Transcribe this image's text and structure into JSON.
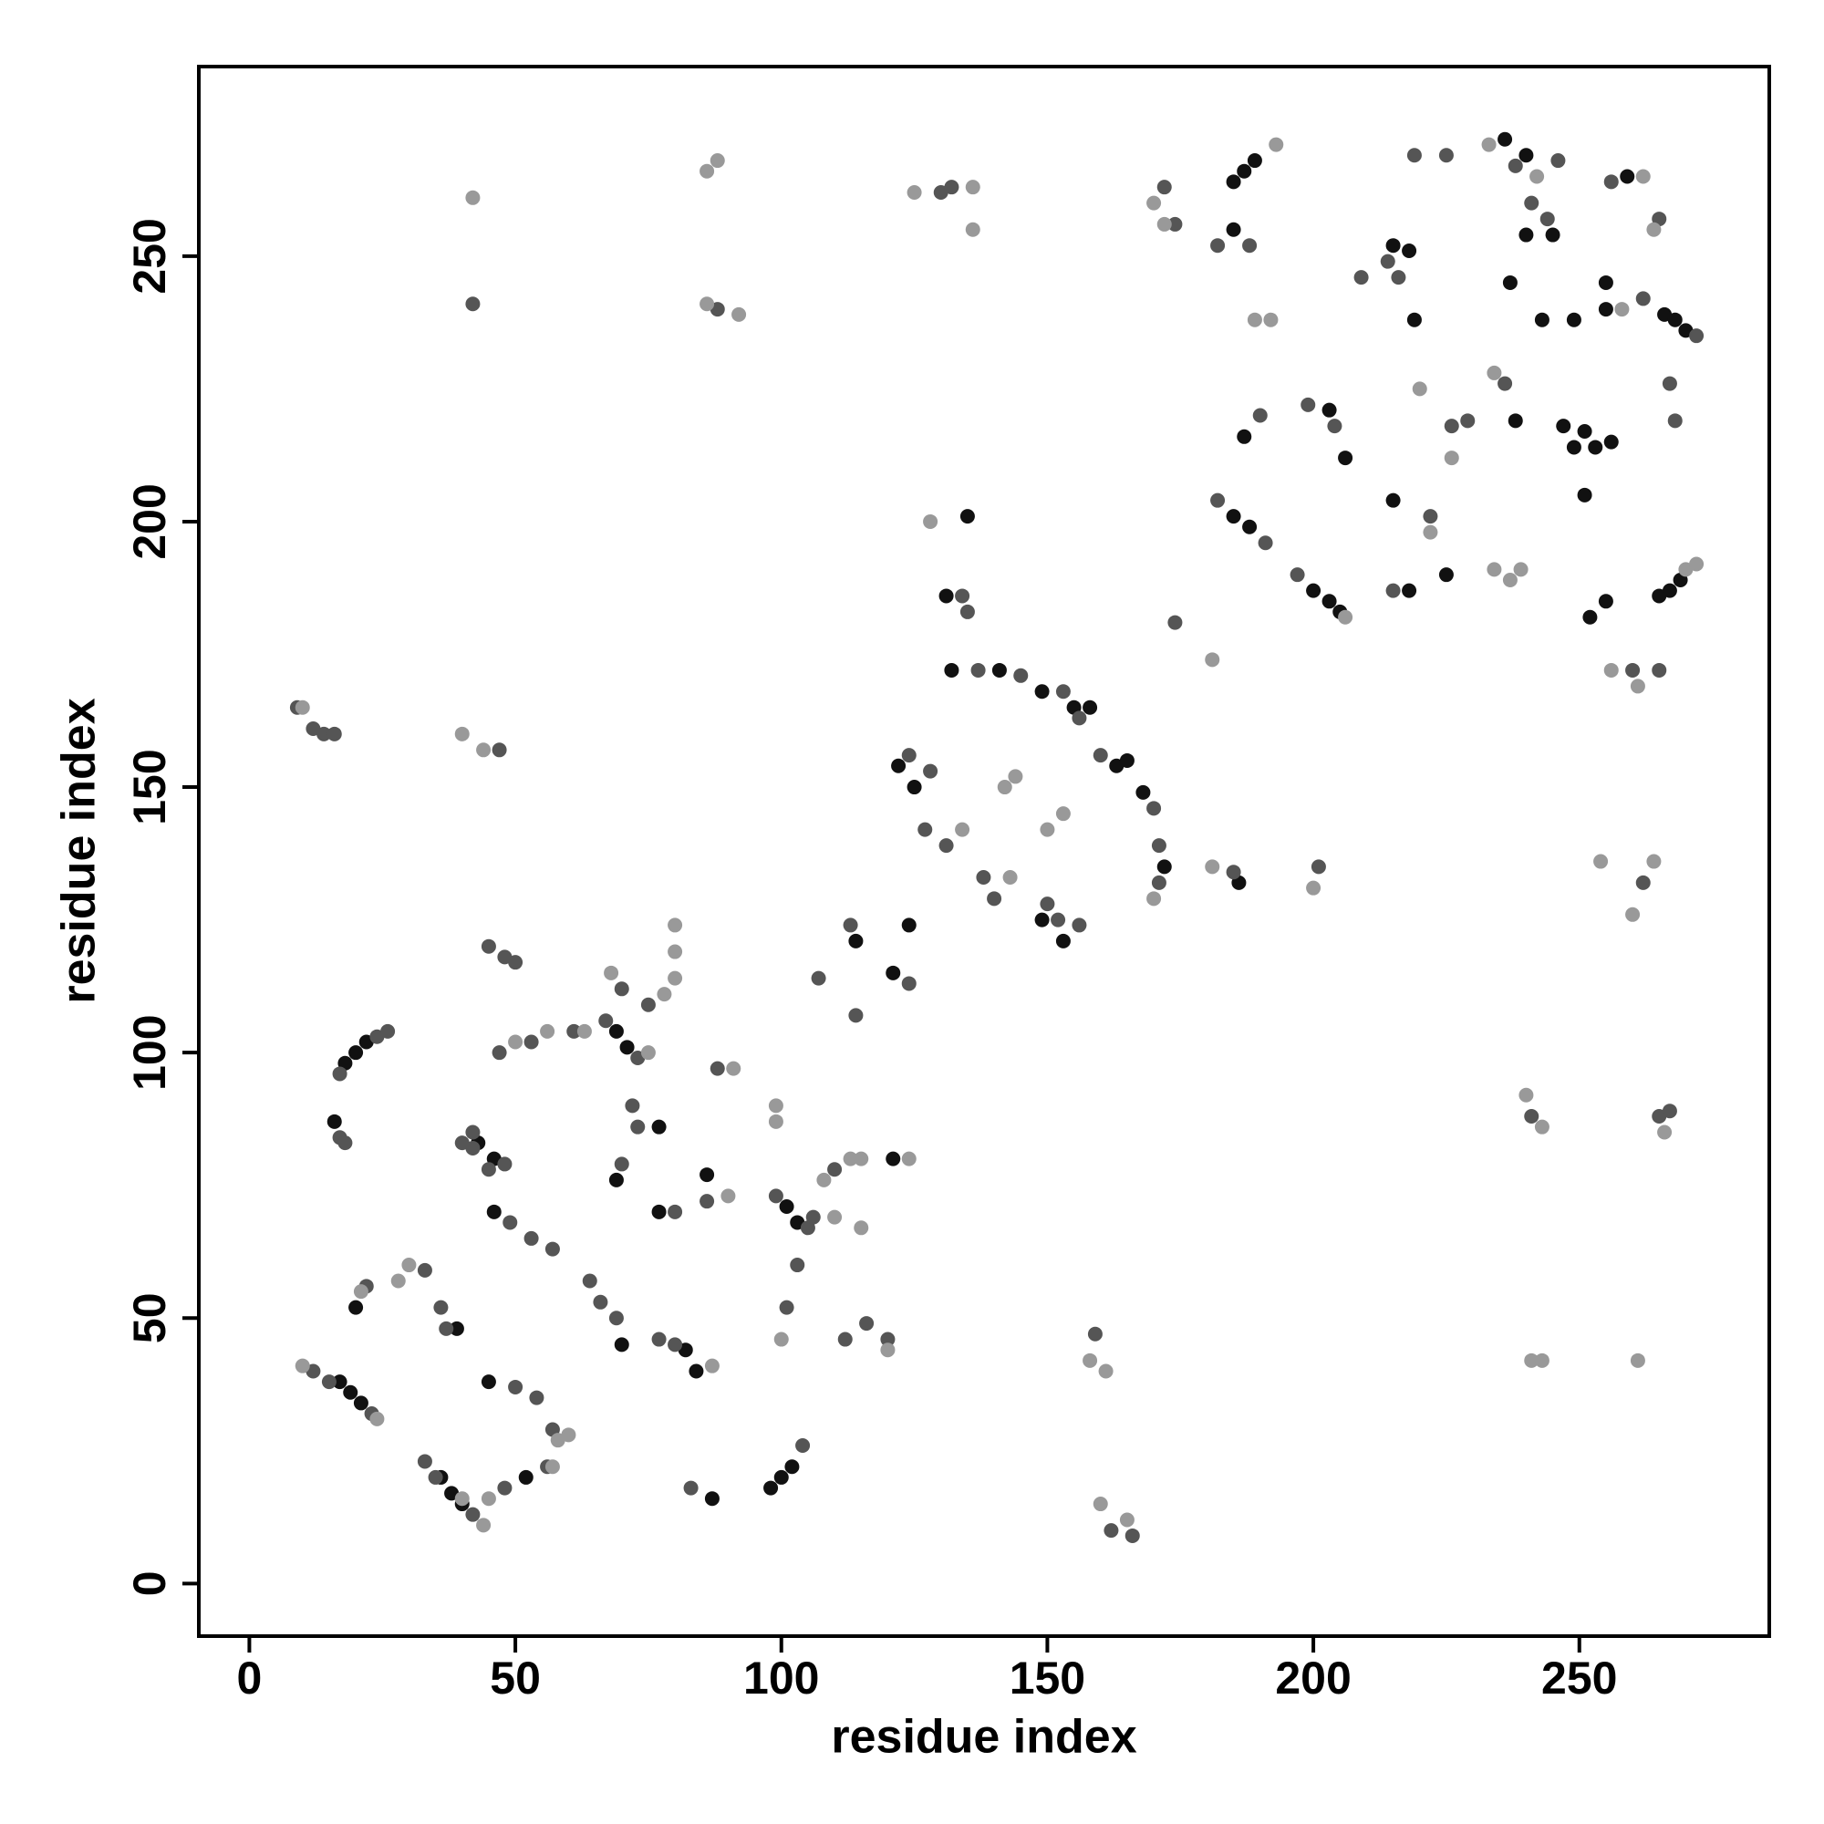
{
  "chart_data": {
    "type": "scatter",
    "x_label": "residue index",
    "y_label": "residue index",
    "xlim": [
      -9.5,
      285.7
    ],
    "ylim": [
      -9.9,
      285.7
    ],
    "xticks": [
      0,
      50,
      100,
      150,
      200,
      250
    ],
    "yticks": [
      0,
      50,
      100,
      150,
      200,
      250
    ],
    "grid": false,
    "series": [
      {
        "color": "#111111",
        "x": [
          17,
          19,
          21,
          36,
          38,
          40,
          20,
          39,
          45,
          52,
          16,
          18,
          20,
          22,
          43,
          46,
          46,
          69,
          71,
          77,
          70,
          69,
          86,
          77,
          84,
          98,
          100,
          102,
          87,
          101,
          103,
          114,
          121,
          122,
          125,
          131,
          135,
          132,
          141,
          149,
          155,
          158,
          163,
          165,
          168,
          149,
          153,
          186,
          185,
          187,
          189,
          185,
          187,
          185,
          188,
          200,
          203,
          205,
          203,
          206,
          215,
          218,
          219,
          215,
          218,
          225,
          236,
          240,
          240,
          245,
          237,
          238,
          247,
          249,
          251,
          253,
          256,
          251,
          252,
          255,
          255,
          255,
          259,
          266,
          268,
          270,
          265,
          267,
          269,
          243,
          249,
          172,
          124,
          121,
          82
        ],
        "values": [
          38,
          36,
          34,
          20,
          17,
          15,
          52,
          48,
          38,
          20,
          87,
          98,
          100,
          102,
          83,
          80,
          70,
          104,
          101,
          86,
          45,
          76,
          77,
          70,
          40,
          18,
          20,
          22,
          16,
          71,
          68,
          121,
          115,
          154,
          150,
          186,
          201,
          172,
          172,
          168,
          165,
          165,
          154,
          155,
          149,
          125,
          121,
          132,
          264,
          266,
          268,
          255,
          216,
          201,
          199,
          187,
          185,
          183,
          221,
          212,
          252,
          251,
          238,
          204,
          187,
          190,
          272,
          269,
          254,
          254,
          245,
          219,
          218,
          214,
          217,
          214,
          215,
          205,
          182,
          185,
          245,
          240,
          265,
          239,
          238,
          236,
          186,
          187,
          189,
          238,
          238,
          135,
          124,
          80,
          44
        ]
      },
      {
        "color": "#555555",
        "x": [
          12,
          15,
          23,
          33,
          35,
          42,
          22,
          33,
          36,
          37,
          50,
          54,
          57,
          48,
          56,
          17,
          18,
          17,
          24,
          26,
          40,
          42,
          45,
          49,
          53,
          57,
          53,
          61,
          67,
          73,
          70,
          75,
          45,
          48,
          50,
          72,
          73,
          70,
          80,
          86,
          88,
          64,
          66,
          69,
          77,
          80,
          83,
          104,
          99,
          105,
          103,
          101,
          106,
          110,
          112,
          116,
          120,
          113,
          107,
          114,
          124,
          124,
          128,
          127,
          131,
          134,
          135,
          137,
          145,
          153,
          156,
          160,
          170,
          171,
          171,
          138,
          140,
          150,
          152,
          156,
          159,
          162,
          166,
          172,
          174,
          174,
          185,
          201,
          182,
          188,
          190,
          182,
          191,
          197,
          199,
          204,
          209,
          214,
          216,
          222,
          226,
          229,
          215,
          219,
          225,
          238,
          241,
          246,
          236,
          244,
          256,
          265,
          262,
          267,
          268,
          272,
          260,
          265,
          262,
          265,
          267,
          241,
          9,
          12,
          14,
          47,
          42,
          130,
          132,
          88,
          48,
          42,
          47,
          16
        ],
        "values": [
          40,
          38,
          32,
          23,
          20,
          13,
          56,
          59,
          52,
          48,
          37,
          35,
          29,
          18,
          22,
          84,
          83,
          96,
          103,
          104,
          83,
          82,
          78,
          68,
          65,
          63,
          102,
          104,
          106,
          99,
          112,
          109,
          120,
          118,
          117,
          90,
          86,
          79,
          70,
          72,
          97,
          57,
          53,
          50,
          46,
          45,
          18,
          26,
          73,
          67,
          60,
          52,
          69,
          78,
          46,
          49,
          46,
          124,
          114,
          107,
          113,
          156,
          153,
          142,
          139,
          186,
          183,
          172,
          171,
          168,
          163,
          156,
          146,
          139,
          132,
          133,
          129,
          128,
          125,
          124,
          47,
          10,
          9,
          263,
          256,
          181,
          134,
          135,
          252,
          252,
          220,
          204,
          196,
          190,
          222,
          218,
          246,
          249,
          246,
          201,
          218,
          219,
          187,
          269,
          269,
          267,
          260,
          268,
          226,
          257,
          264,
          257,
          242,
          226,
          219,
          235,
          172,
          172,
          132,
          88,
          89,
          88,
          165,
          161,
          160,
          157,
          241,
          262,
          263,
          240,
          79,
          85,
          100,
          160
        ]
      },
      {
        "color": "#999999",
        "x": [
          10,
          24,
          44,
          30,
          28,
          40,
          58,
          60,
          57,
          45,
          21,
          56,
          63,
          50,
          68,
          78,
          80,
          80,
          80,
          75,
          91,
          90,
          87,
          99,
          99,
          100,
          108,
          113,
          115,
          124,
          110,
          115,
          120,
          128,
          134,
          143,
          144,
          142,
          150,
          153,
          170,
          158,
          161,
          160,
          165,
          170,
          172,
          181,
          181,
          200,
          189,
          192,
          193,
          206,
          220,
          222,
          226,
          233,
          234,
          239,
          237,
          234,
          261,
          256,
          262,
          258,
          264,
          270,
          272,
          240,
          243,
          266,
          241,
          243,
          261,
          260,
          264,
          254,
          10,
          40,
          44,
          42,
          86,
          88,
          86,
          92,
          125,
          136,
          136,
          242
        ],
        "values": [
          41,
          31,
          11,
          60,
          57,
          16,
          27,
          28,
          22,
          16,
          55,
          104,
          104,
          102,
          115,
          111,
          114,
          119,
          124,
          100,
          97,
          73,
          41,
          90,
          87,
          46,
          76,
          80,
          80,
          80,
          69,
          67,
          44,
          200,
          142,
          133,
          152,
          150,
          142,
          145,
          129,
          42,
          40,
          15,
          12,
          260,
          256,
          174,
          135,
          131,
          238,
          238,
          271,
          182,
          225,
          198,
          212,
          271,
          191,
          191,
          189,
          228,
          169,
          172,
          265,
          240,
          255,
          191,
          192,
          92,
          86,
          85,
          42,
          42,
          42,
          126,
          136,
          136,
          165,
          160,
          157,
          261,
          266,
          268,
          241,
          239,
          262,
          263,
          255,
          265
        ]
      }
    ]
  }
}
